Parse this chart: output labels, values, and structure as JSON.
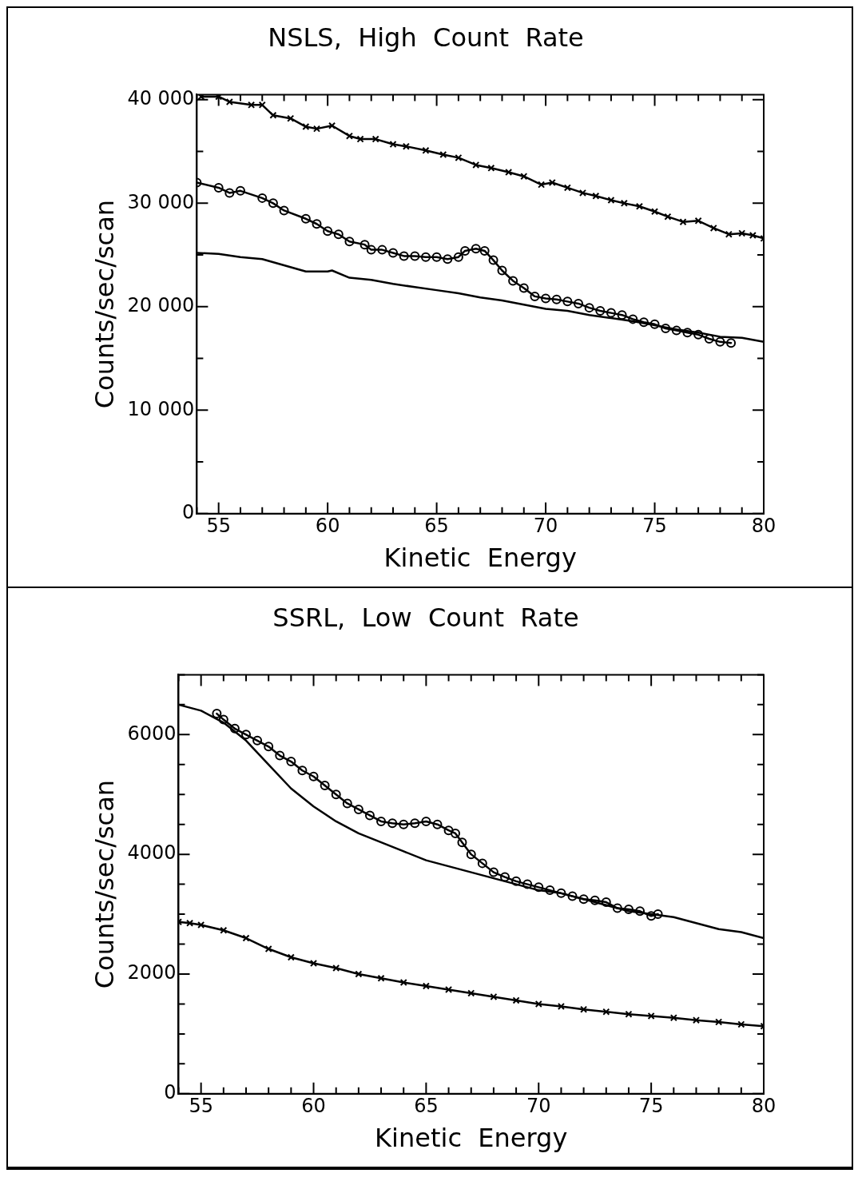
{
  "chart_data": [
    {
      "type": "line",
      "title": "NSLS,  High  Count  Rate",
      "xlabel": "Kinetic  Energy",
      "ylabel": "Counts/sec/scan",
      "xlim": [
        54,
        80
      ],
      "ylim": [
        0,
        40500
      ],
      "xticks": [
        {
          "value": 54,
          "label": null
        },
        55,
        {
          "value": 56,
          "label": null
        },
        {
          "value": 57,
          "label": null
        },
        {
          "value": 58,
          "label": null
        },
        {
          "value": 59,
          "label": null
        },
        60,
        {
          "value": 61,
          "label": null
        },
        {
          "value": 62,
          "label": null
        },
        {
          "value": 63,
          "label": null
        },
        {
          "value": 64,
          "label": null
        },
        65,
        {
          "value": 66,
          "label": null
        },
        {
          "value": 67,
          "label": null
        },
        {
          "value": 68,
          "label": null
        },
        {
          "value": 69,
          "label": null
        },
        70,
        {
          "value": 71,
          "label": null
        },
        {
          "value": 72,
          "label": null
        },
        {
          "value": 73,
          "label": null
        },
        {
          "value": 74,
          "label": null
        },
        75,
        {
          "value": 76,
          "label": null
        },
        {
          "value": 77,
          "label": null
        },
        {
          "value": 78,
          "label": null
        },
        {
          "value": 79,
          "label": null
        },
        80
      ],
      "yticks": [
        0,
        {
          "value": 5000,
          "label": null
        },
        {
          "value": 10000,
          "label": "10 000"
        },
        {
          "value": 15000,
          "label": null
        },
        {
          "value": 20000,
          "label": "20 000"
        },
        {
          "value": 25000,
          "label": null
        },
        {
          "value": 30000,
          "label": "30 000"
        },
        {
          "value": 35000,
          "label": null
        },
        {
          "value": 40000,
          "label": "40 000"
        }
      ],
      "grid": false,
      "legend": false,
      "line_style": "solid",
      "series": [
        {
          "color": "#000000",
          "marker": "cross",
          "x": [
            54.2,
            55,
            55.5,
            56.5,
            57,
            57.5,
            58.3,
            59,
            59.5,
            60.2,
            61,
            61.5,
            62.2,
            63,
            63.6,
            64.5,
            65.3,
            66,
            66.8,
            67.5,
            68.3,
            69,
            69.8,
            70.3,
            71,
            71.7,
            72.3,
            73,
            73.6,
            74.3,
            75,
            75.6,
            76.3,
            77,
            77.7,
            78.4,
            79,
            79.5,
            80
          ],
          "values": [
            40300,
            40300,
            39800,
            39500,
            39500,
            38500,
            38200,
            37400,
            37200,
            37500,
            36500,
            36200,
            36200,
            35700,
            35500,
            35100,
            34700,
            34400,
            33700,
            33400,
            33000,
            32600,
            31800,
            32000,
            31500,
            31000,
            30700,
            30300,
            30000,
            29700,
            29200,
            28700,
            28200,
            28300,
            27600,
            27000,
            27100,
            26900,
            26600
          ]
        },
        {
          "color": "#000000",
          "marker": "circle",
          "x": [
            54,
            55,
            55.5,
            56,
            57,
            57.5,
            58,
            59,
            59.5,
            60,
            60.5,
            61,
            61.7,
            62,
            62.5,
            63,
            63.5,
            64,
            64.5,
            65,
            65.5,
            66,
            66.3,
            66.8,
            67.2,
            67.6,
            68,
            68.5,
            69,
            69.5,
            70,
            70.5,
            71,
            71.5,
            72,
            72.5,
            73,
            73.5,
            74,
            74.5,
            75,
            75.5,
            76,
            76.5,
            77,
            77.5,
            78,
            78.5
          ],
          "values": [
            32000,
            31500,
            31000,
            31200,
            30500,
            30000,
            29300,
            28500,
            28000,
            27300,
            27000,
            26300,
            26000,
            25500,
            25500,
            25200,
            24900,
            24900,
            24800,
            24800,
            24600,
            24800,
            25400,
            25600,
            25400,
            24500,
            23500,
            22500,
            21800,
            21000,
            20800,
            20700,
            20500,
            20300,
            19900,
            19600,
            19400,
            19200,
            18800,
            18500,
            18300,
            17900,
            17700,
            17500,
            17300,
            16900,
            16600,
            16500
          ]
        },
        {
          "color": "#000000",
          "marker": "none",
          "x": [
            54,
            55,
            56,
            57,
            58,
            59,
            60,
            60.2,
            61,
            62,
            63,
            64,
            65,
            66,
            67,
            68,
            69,
            70,
            71,
            72,
            73,
            74,
            75,
            76,
            77,
            78,
            79,
            80
          ],
          "values": [
            25200,
            25100,
            24800,
            24600,
            24000,
            23400,
            23400,
            23500,
            22800,
            22600,
            22200,
            21900,
            21600,
            21300,
            20900,
            20600,
            20200,
            19800,
            19600,
            19200,
            18900,
            18600,
            18200,
            17800,
            17500,
            17100,
            17000,
            16600
          ]
        }
      ]
    },
    {
      "type": "line",
      "title": "SSRL,  Low  Count  Rate",
      "xlabel": "Kinetic  Energy",
      "ylabel": "Counts/sec/scan",
      "xlim": [
        54,
        80
      ],
      "ylim": [
        0,
        7000
      ],
      "xticks": [
        {
          "value": 54,
          "label": null
        },
        55,
        {
          "value": 56,
          "label": null
        },
        {
          "value": 57,
          "label": null
        },
        {
          "value": 58,
          "label": null
        },
        {
          "value": 59,
          "label": null
        },
        60,
        {
          "value": 61,
          "label": null
        },
        {
          "value": 62,
          "label": null
        },
        {
          "value": 63,
          "label": null
        },
        {
          "value": 64,
          "label": null
        },
        65,
        {
          "value": 66,
          "label": null
        },
        {
          "value": 67,
          "label": null
        },
        {
          "value": 68,
          "label": null
        },
        {
          "value": 69,
          "label": null
        },
        70,
        {
          "value": 71,
          "label": null
        },
        {
          "value": 72,
          "label": null
        },
        {
          "value": 73,
          "label": null
        },
        {
          "value": 74,
          "label": null
        },
        75,
        {
          "value": 76,
          "label": null
        },
        {
          "value": 77,
          "label": null
        },
        {
          "value": 78,
          "label": null
        },
        {
          "value": 79,
          "label": null
        },
        80
      ],
      "yticks": [
        0,
        {
          "value": 500,
          "label": null
        },
        {
          "value": 1000,
          "label": null
        },
        {
          "value": 1500,
          "label": null
        },
        2000,
        {
          "value": 2500,
          "label": null
        },
        {
          "value": 3000,
          "label": null
        },
        {
          "value": 3500,
          "label": null
        },
        4000,
        {
          "value": 4500,
          "label": null
        },
        {
          "value": 5000,
          "label": null
        },
        {
          "value": 5500,
          "label": null
        },
        6000,
        {
          "value": 6500,
          "label": null
        },
        {
          "value": 7000,
          "label": null
        }
      ],
      "grid": false,
      "legend": false,
      "line_style": "solid",
      "series": [
        {
          "color": "#000000",
          "marker": "circle",
          "x": [
            55.7,
            56,
            56.5,
            57,
            57.5,
            58,
            58.5,
            59,
            59.5,
            60,
            60.5,
            61,
            61.5,
            62,
            62.5,
            63,
            63.5,
            64,
            64.5,
            65,
            65.5,
            66,
            66.3,
            66.6,
            67,
            67.5,
            68,
            68.5,
            69,
            69.5,
            70,
            70.5,
            71,
            71.5,
            72,
            72.5,
            73,
            73.5,
            74,
            74.5,
            75,
            75.3
          ],
          "values": [
            6350,
            6250,
            6100,
            6000,
            5900,
            5800,
            5650,
            5550,
            5400,
            5300,
            5150,
            5000,
            4850,
            4750,
            4650,
            4550,
            4520,
            4500,
            4520,
            4550,
            4500,
            4400,
            4350,
            4200,
            4000,
            3850,
            3700,
            3620,
            3550,
            3500,
            3450,
            3400,
            3350,
            3300,
            3250,
            3230,
            3200,
            3100,
            3080,
            3050,
            2970,
            3000
          ]
        },
        {
          "color": "#000000",
          "marker": "none",
          "x": [
            54,
            55,
            56,
            57,
            58,
            59,
            60,
            61,
            62,
            63,
            64,
            65,
            66,
            67,
            68,
            69,
            70,
            71,
            72,
            73,
            74,
            75,
            76,
            77,
            78,
            79,
            80
          ],
          "values": [
            6500,
            6400,
            6200,
            5900,
            5500,
            5100,
            4800,
            4550,
            4350,
            4200,
            4050,
            3900,
            3800,
            3700,
            3600,
            3500,
            3400,
            3350,
            3250,
            3150,
            3050,
            3000,
            2950,
            2850,
            2750,
            2700,
            2600
          ]
        },
        {
          "color": "#000000",
          "marker": "cross",
          "x": [
            54,
            54.5,
            55,
            56,
            57,
            58,
            59,
            60,
            61,
            62,
            63,
            64,
            65,
            66,
            67,
            68,
            69,
            70,
            71,
            72,
            73,
            74,
            75,
            76,
            77,
            78,
            79,
            80
          ],
          "values": [
            2870,
            2850,
            2820,
            2730,
            2600,
            2420,
            2280,
            2180,
            2100,
            2000,
            1930,
            1860,
            1800,
            1740,
            1680,
            1620,
            1560,
            1500,
            1460,
            1410,
            1370,
            1330,
            1300,
            1270,
            1230,
            1200,
            1160,
            1130
          ]
        }
      ]
    }
  ]
}
